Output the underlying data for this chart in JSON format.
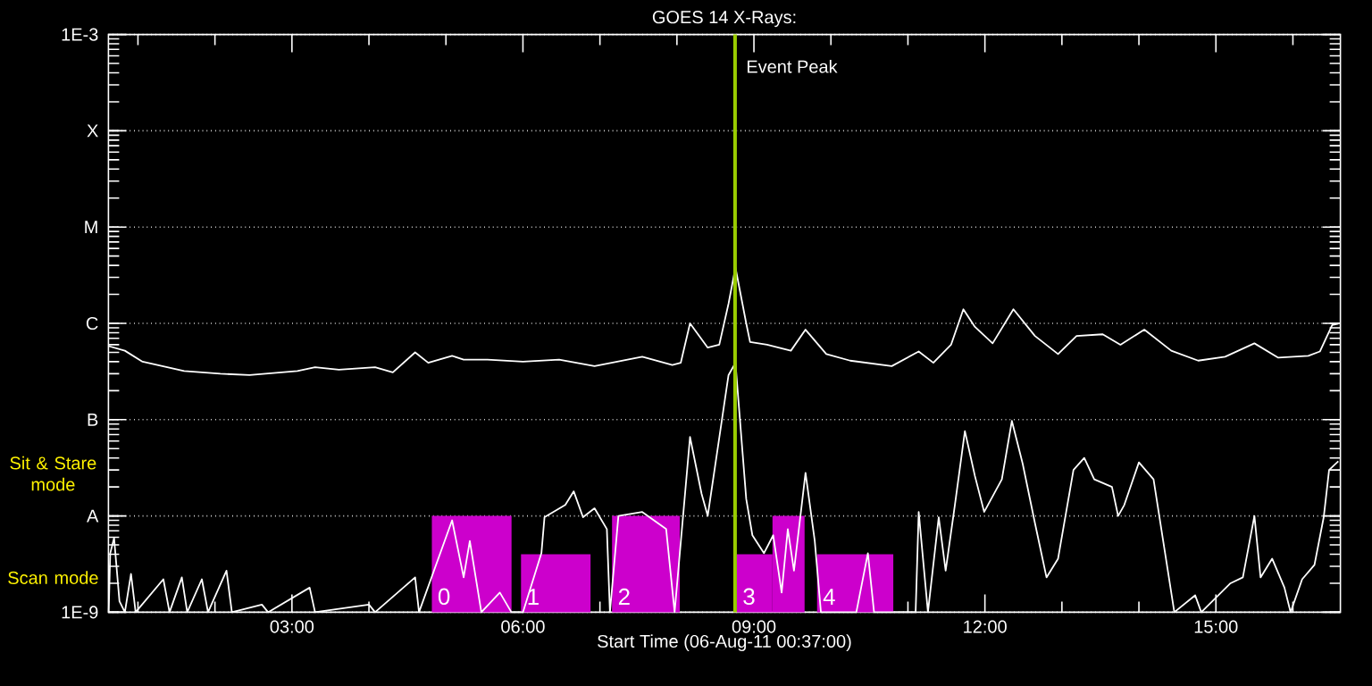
{
  "chart_data": {
    "type": "line",
    "title": "GOES 14 X-Rays:",
    "xlabel": "Start Time (06-Aug-11 00:37:00)",
    "xlim": [
      0.6167,
      16.6167
    ],
    "xticks": [
      {
        "value": 1,
        "label": null
      },
      {
        "value": 2,
        "label": null
      },
      {
        "value": 3,
        "label": "03:00"
      },
      {
        "value": 4,
        "label": null
      },
      {
        "value": 5,
        "label": null
      },
      {
        "value": 6,
        "label": "06:00"
      },
      {
        "value": 7,
        "label": null
      },
      {
        "value": 8,
        "label": null
      },
      {
        "value": 9,
        "label": "09:00"
      },
      {
        "value": 10,
        "label": null
      },
      {
        "value": 11,
        "label": null
      },
      {
        "value": 12,
        "label": "12:00"
      },
      {
        "value": 13,
        "label": null
      },
      {
        "value": 14,
        "label": null
      },
      {
        "value": 15,
        "label": "15:00"
      },
      {
        "value": 16,
        "label": null
      }
    ],
    "ylim": [
      1e-09,
      0.001
    ],
    "log": true,
    "yticks": [
      {
        "value": 1e-09,
        "label": "1E-9"
      },
      {
        "value": 1e-08,
        "label": "A"
      },
      {
        "value": 1e-07,
        "label": "B"
      },
      {
        "value": 1e-06,
        "label": "C"
      },
      {
        "value": 1e-05,
        "label": "M"
      },
      {
        "value": 0.0001,
        "label": "X"
      },
      {
        "value": 0.001,
        "label": "1E-3"
      }
    ],
    "grid": "y",
    "series": [
      {
        "type": "histogram",
        "color": "#cc00cc",
        "bins": [
          4.817,
          5.852,
          5.975,
          6.878,
          7.157,
          8.037,
          8.778,
          9.241,
          9.658,
          9.82,
          10.81
        ],
        "values": [
          1e-08,
          null,
          4e-09,
          null,
          1e-08,
          null,
          4e-09,
          1e-08,
          null,
          4e-09
        ]
      },
      {
        "color": "#ffffff",
        "x": [
          0.62,
          0.83,
          1.06,
          1.6,
          2.07,
          2.45,
          3.07,
          3.3,
          3.61,
          4.08,
          4.31,
          4.6,
          4.77,
          5.08,
          5.23,
          5.54,
          6.0,
          6.47,
          6.93,
          7.55,
          7.94,
          8.05,
          8.17,
          8.4,
          8.55,
          8.67,
          8.76,
          8.9,
          8.95,
          9.17,
          9.48,
          9.67,
          9.94,
          10.25,
          10.79,
          11.14,
          11.33,
          11.56,
          11.72,
          11.87,
          12.1,
          12.37,
          12.65,
          12.95,
          13.19,
          13.53,
          13.76,
          14.07,
          14.42,
          14.77,
          15.12,
          15.5,
          15.81,
          16.2,
          16.35,
          16.51,
          16.59
        ],
        "values": [
          5.8e-07,
          5.2e-07,
          4e-07,
          3.2e-07,
          3e-07,
          2.9e-07,
          3.2e-07,
          3.5e-07,
          3.3e-07,
          3.5e-07,
          3.1e-07,
          5e-07,
          3.9e-07,
          4.6e-07,
          4.2e-07,
          4.2e-07,
          4e-07,
          4.2e-07,
          3.6e-07,
          4.5e-07,
          3.7e-07,
          3.9e-07,
          1e-06,
          5.6e-07,
          6e-07,
          1.6e-06,
          3.8e-06,
          1e-06,
          6.4e-07,
          6e-07,
          5.2e-07,
          8.6e-07,
          4.8e-07,
          4.1e-07,
          3.6e-07,
          5.1e-07,
          3.9e-07,
          6e-07,
          1.4e-06,
          9.2e-07,
          6.2e-07,
          1.4e-06,
          7.4e-07,
          4.8e-07,
          7.4e-07,
          7.7e-07,
          6e-07,
          8.6e-07,
          5.2e-07,
          4.1e-07,
          4.5e-07,
          6.2e-07,
          4.4e-07,
          4.6e-07,
          5.1e-07,
          9.6e-07,
          9.9e-07
        ]
      },
      {
        "color": "#ffffff",
        "x": [
          0.62,
          0.64,
          0.69,
          0.76,
          0.83,
          0.91,
          0.97,
          1.33,
          1.41,
          1.57,
          1.64,
          1.83,
          1.91,
          2.15,
          2.22,
          2.61,
          2.69,
          3.23,
          3.3,
          4.0,
          4.08,
          4.6,
          4.65,
          5.08,
          5.23,
          5.31,
          5.46,
          5.7,
          5.85,
          6.0,
          6.24,
          6.28,
          6.55,
          6.66,
          6.78,
          6.93,
          7.09,
          7.13,
          7.24,
          7.55,
          7.86,
          7.97,
          8.17,
          8.32,
          8.4,
          8.67,
          8.76,
          8.9,
          8.98,
          9.13,
          9.25,
          9.36,
          9.44,
          9.52,
          9.67,
          9.79,
          9.87,
          10.33,
          10.48,
          10.56,
          11.1,
          11.14,
          11.26,
          11.4,
          11.49,
          11.61,
          11.74,
          11.87,
          11.99,
          12.22,
          12.35,
          12.49,
          12.65,
          12.8,
          12.95,
          13.15,
          13.29,
          13.42,
          13.65,
          13.73,
          13.81,
          14.0,
          14.19,
          14.46,
          14.73,
          14.81,
          15.19,
          15.35,
          15.5,
          15.58,
          15.73,
          15.89,
          15.97,
          16.12,
          16.28,
          16.4,
          16.47,
          16.59
        ],
        "values": [
          1e-09,
          4.1e-09,
          5.9e-09,
          1.3e-09,
          1e-09,
          2.5e-09,
          1e-09,
          2.2e-09,
          1e-09,
          2.3e-09,
          1e-09,
          2.2e-09,
          1e-09,
          2.7e-09,
          1e-09,
          1.2e-09,
          1e-09,
          1.8e-09,
          1e-09,
          1.2e-09,
          1e-09,
          2.3e-09,
          1e-09,
          9e-09,
          2.3e-09,
          5.5e-09,
          1e-09,
          1.6e-09,
          1e-09,
          1e-09,
          4.1e-09,
          9.7e-09,
          1.3e-08,
          1.8e-08,
          9.7e-09,
          1.2e-08,
          7.3e-09,
          1e-09,
          1e-08,
          1.1e-08,
          7.3e-09,
          1e-09,
          6.6e-08,
          1.7e-08,
          1e-08,
          2.9e-07,
          3.9e-07,
          1.5e-08,
          6.3e-09,
          4.1e-09,
          6.3e-09,
          1.6e-09,
          7.3e-09,
          2.7e-09,
          2.8e-08,
          5.5e-09,
          1e-09,
          1e-09,
          4.1e-09,
          1e-09,
          1e-09,
          1.1e-08,
          1e-09,
          9.7e-09,
          2.7e-09,
          1.3e-08,
          7.6e-08,
          2.6e-08,
          1.1e-08,
          2.4e-08,
          9.7e-08,
          3.5e-08,
          8.4e-09,
          2.3e-09,
          3.6e-09,
          3e-08,
          4e-08,
          2.4e-08,
          2e-08,
          1e-08,
          1.3e-08,
          3.6e-08,
          2.4e-08,
          1e-09,
          1.5e-09,
          1e-09,
          2e-09,
          2.3e-09,
          1e-08,
          2.3e-09,
          3.6e-09,
          1.8e-09,
          1e-09,
          2.2e-09,
          3.1e-09,
          9.7e-09,
          3e-08,
          3.7e-08
        ]
      }
    ],
    "ref_lines": [
      {
        "axis": "x",
        "value": 8.755,
        "label": "Event Peak",
        "color": "#99cc00"
      }
    ],
    "annotations": [
      "0",
      "1",
      "2",
      "3",
      "4",
      "Sit & Stare mode",
      "Scan mode"
    ]
  }
}
